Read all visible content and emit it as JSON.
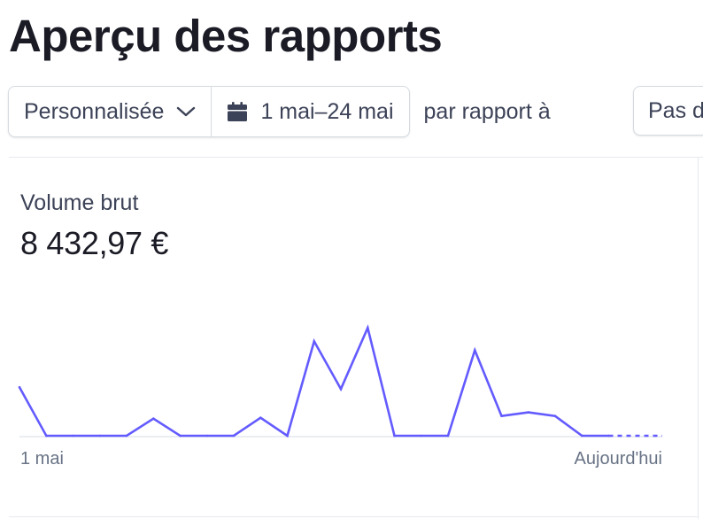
{
  "header": {
    "title": "Aperçu des rapports"
  },
  "filters": {
    "period_label": "Personnalisée",
    "date_range": "1 mai–24 mai",
    "compare_text": "par rapport à",
    "compare_value": "Pas de comparaison"
  },
  "metric": {
    "label": "Volume brut",
    "value": "8 432,97 €"
  },
  "colors": {
    "line": "#635bff",
    "baseline": "#e3e8ee"
  },
  "chart_data": {
    "type": "line",
    "x_labels": [
      "1 mai",
      "Aujourd'hui"
    ],
    "series": [
      {
        "values": [
          540,
          0,
          0,
          0,
          0,
          190,
          0,
          0,
          0,
          200,
          0,
          1050,
          520,
          1200,
          0,
          0,
          0,
          950,
          220,
          260,
          220,
          0,
          0
        ],
        "future_values": [
          0,
          0
        ]
      }
    ],
    "ylim": [
      0,
      1300
    ],
    "grid": false
  }
}
